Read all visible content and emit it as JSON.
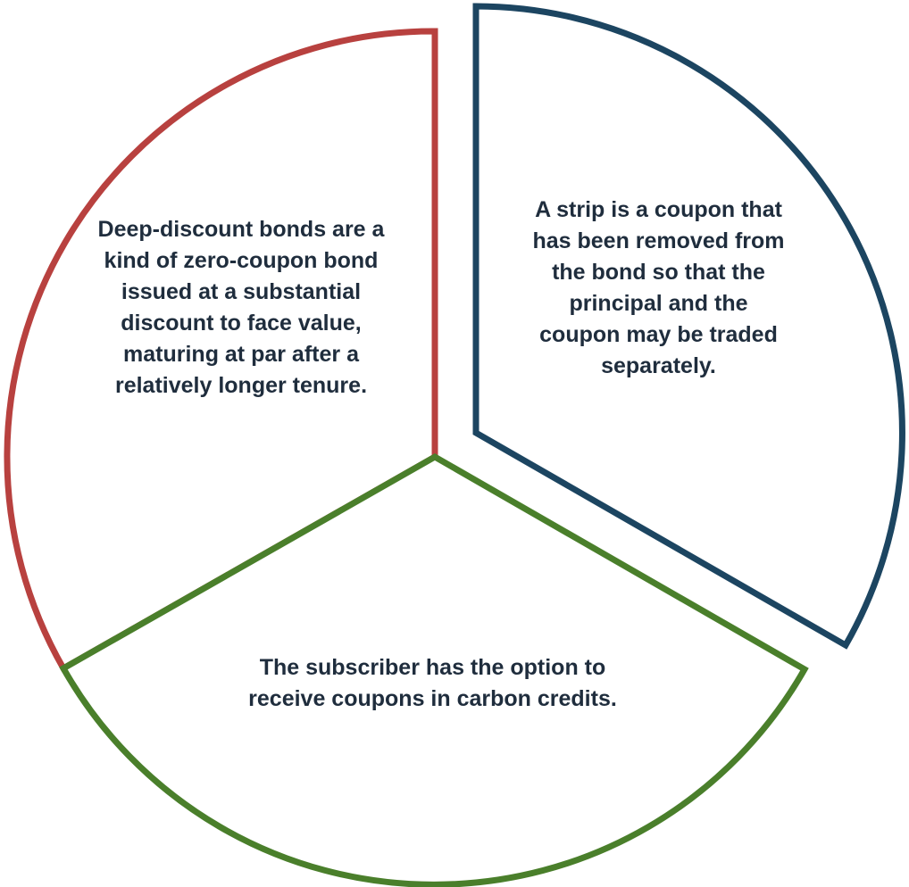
{
  "segments": [
    {
      "id": "left",
      "color": "#b8413f",
      "text": "Deep-discount bonds are a kind of zero-coupon bond issued at a substantial discount to face value, maturing at par after a relatively longer tenure."
    },
    {
      "id": "right",
      "color": "#1c4561",
      "text": "A strip is a coupon that has been removed from the bond so that the principal and the coupon may be traded separately."
    },
    {
      "id": "bottom",
      "color": "#4a7f2b",
      "text": "The subscriber has the option to receive coupons in carbon credits."
    }
  ]
}
